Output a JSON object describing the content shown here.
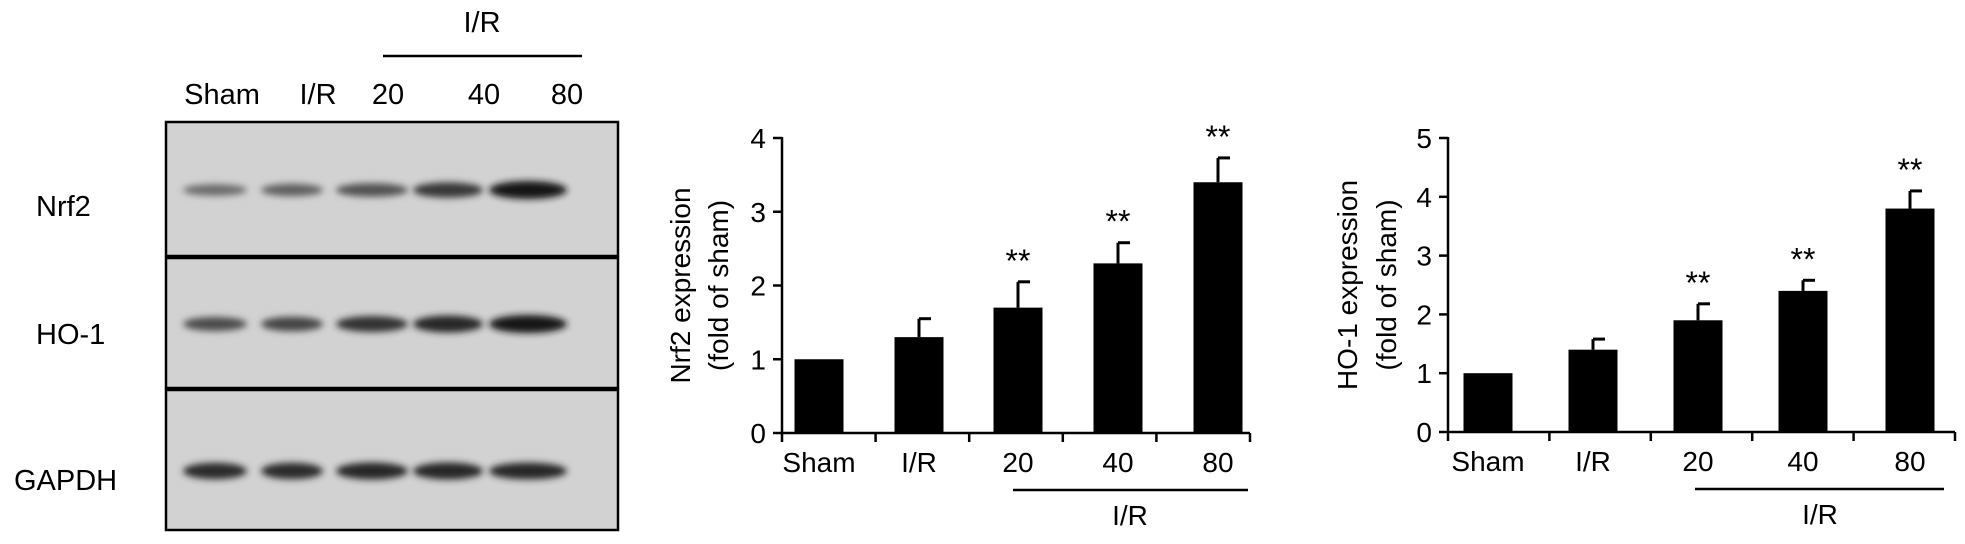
{
  "blot": {
    "group_label": "I/R",
    "lanes": [
      "Sham",
      "I/R",
      "20",
      "40",
      "80"
    ],
    "rows": [
      {
        "label": "Nrf2",
        "intensity": [
          0.35,
          0.45,
          0.55,
          0.75,
          1.0
        ]
      },
      {
        "label": "HO-1",
        "intensity": [
          0.6,
          0.65,
          0.8,
          0.9,
          1.0
        ]
      },
      {
        "label": "GAPDH",
        "intensity": [
          0.85,
          0.85,
          0.9,
          0.9,
          0.88
        ]
      }
    ]
  },
  "chart_data": [
    {
      "type": "bar",
      "categories": [
        "Sham",
        "I/R",
        "20",
        "40",
        "80"
      ],
      "values": [
        1.0,
        1.3,
        1.7,
        2.3,
        3.4
      ],
      "errors": [
        0,
        0.25,
        0.35,
        0.28,
        0.33
      ],
      "significance": [
        "",
        "",
        "**",
        "**",
        "**"
      ],
      "group_label": "I/R",
      "ylabel": "Nrf2 expression",
      "ylabel2": "(fold of sham)",
      "ylim": [
        0,
        4
      ],
      "yticks": [
        "0",
        "1",
        "2",
        "3",
        "4"
      ],
      "grid": false
    },
    {
      "type": "bar",
      "categories": [
        "Sham",
        "I/R",
        "20",
        "40",
        "80"
      ],
      "values": [
        1.0,
        1.4,
        1.9,
        2.4,
        3.8
      ],
      "errors": [
        0,
        0.18,
        0.28,
        0.18,
        0.3
      ],
      "significance": [
        "",
        "",
        "**",
        "**",
        "**"
      ],
      "group_label": "I/R",
      "ylabel": "HO-1 expression",
      "ylabel2": "(fold of sham)",
      "ylim": [
        0,
        5
      ],
      "yticks": [
        "0",
        "1",
        "2",
        "3",
        "4",
        "5"
      ],
      "grid": false
    }
  ]
}
